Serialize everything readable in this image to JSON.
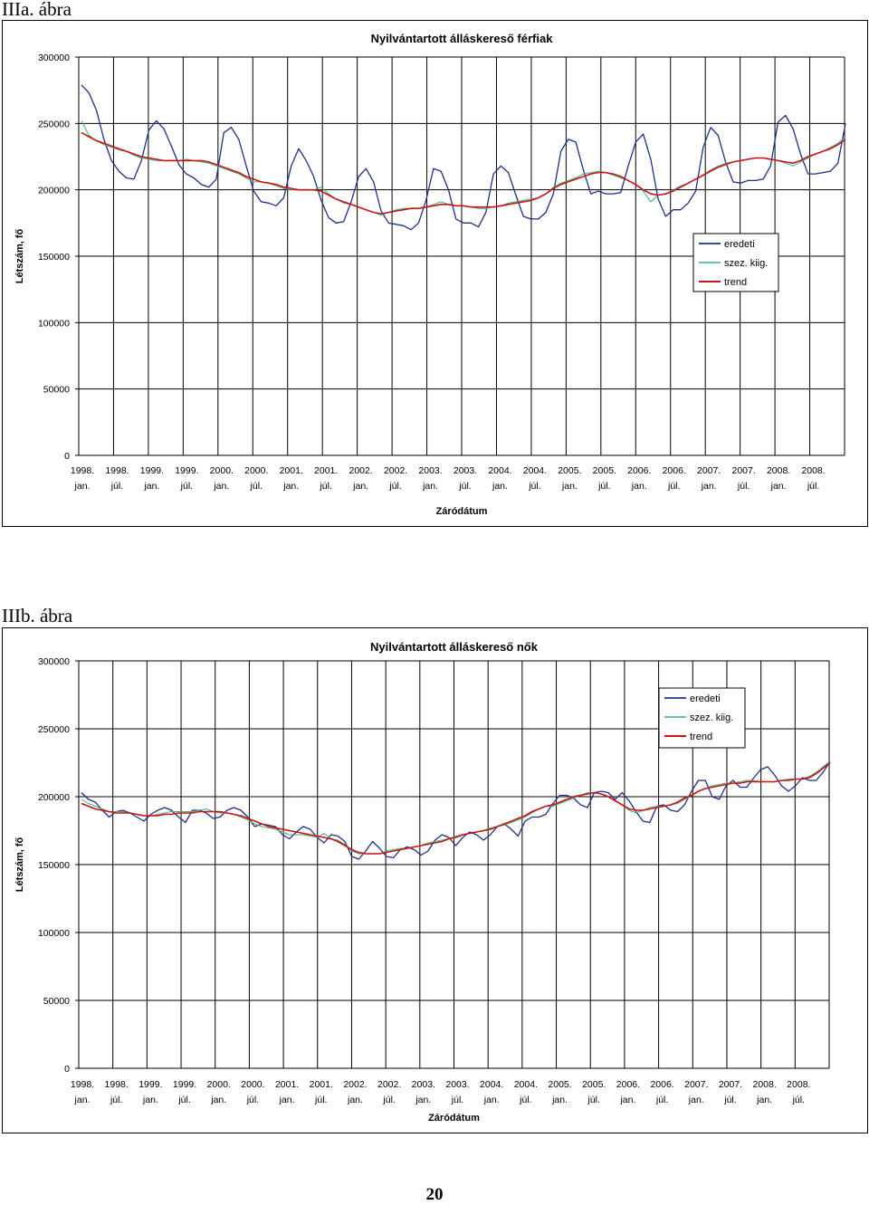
{
  "captions": {
    "a": "IIIa. ábra",
    "b": "IIIb. ábra"
  },
  "page_number": "20",
  "colors": {
    "eredeti": "#1f2f8c",
    "szez": "#3fae7a",
    "trend": "#cc1111",
    "grid": "#000000"
  },
  "chart_data": [
    {
      "type": "line",
      "title": "Nyilvántartott álláskereső férfiak",
      "xlabel": "Záródátum",
      "ylabel": "Létszám, fő",
      "ylim": [
        0,
        300000
      ],
      "yticks": [
        "300000",
        "250000",
        "200000",
        "150000",
        "100000",
        "50000",
        "0"
      ],
      "xticks": [
        [
          "1998.",
          "jan."
        ],
        [
          "1998.",
          "júl."
        ],
        [
          "1999.",
          "jan."
        ],
        [
          "1999.",
          "júl."
        ],
        [
          "2000.",
          "jan."
        ],
        [
          "2000.",
          "júl."
        ],
        [
          "2001.",
          "jan."
        ],
        [
          "2001.",
          "júl."
        ],
        [
          "2002.",
          "jan."
        ],
        [
          "2002.",
          "júl."
        ],
        [
          "2003.",
          "jan."
        ],
        [
          "2003.",
          "júl."
        ],
        [
          "2004.",
          "jan."
        ],
        [
          "2004.",
          "júl."
        ],
        [
          "2005.",
          "jan."
        ],
        [
          "2005.",
          "júl."
        ],
        [
          "2006.",
          "jan."
        ],
        [
          "2006.",
          "júl."
        ],
        [
          "2007.",
          "jan."
        ],
        [
          "2007.",
          "júl."
        ],
        [
          "2008.",
          "jan."
        ],
        [
          "2008.",
          "júl."
        ]
      ],
      "grid": true,
      "legend": "right",
      "series": [
        {
          "name": "eredeti",
          "values": [
            279000,
            273000,
            260000,
            238000,
            222000,
            214000,
            209000,
            208000,
            222000,
            245000,
            252000,
            246000,
            233000,
            219000,
            212000,
            209000,
            204000,
            202000,
            208000,
            243000,
            247000,
            238000,
            218000,
            199000,
            191000,
            190000,
            188000,
            194000,
            218000,
            231000,
            222000,
            210000,
            192000,
            179000,
            175000,
            176000,
            191000,
            210000,
            216000,
            206000,
            184000,
            175000,
            174000,
            173000,
            170000,
            175000,
            192000,
            216000,
            214000,
            200000,
            178000,
            175000,
            175000,
            172000,
            183000,
            212000,
            218000,
            213000,
            196000,
            180000,
            178000,
            178000,
            183000,
            197000,
            229000,
            238000,
            236000,
            215000,
            197000,
            199000,
            197000,
            197000,
            198000,
            218000,
            236000,
            242000,
            223000,
            193000,
            180000,
            185000,
            185000,
            190000,
            199000,
            232000,
            247000,
            241000,
            221000,
            206000,
            205000,
            207000,
            207000,
            208000,
            218000,
            251000,
            256000,
            246000,
            227000,
            212000,
            212000,
            213000,
            214000,
            220000,
            250000
          ]
        },
        {
          "name": "szez. kiig.",
          "values": [
            252000,
            241000,
            237000,
            234000,
            232000,
            230000,
            229000,
            226000,
            224000,
            223000,
            222000,
            222000,
            222000,
            222000,
            223000,
            222000,
            221000,
            220000,
            218000,
            216000,
            214000,
            212000,
            209000,
            206000,
            206000,
            205000,
            203000,
            201000,
            200000,
            200000,
            200000,
            200000,
            202000,
            197000,
            193000,
            190000,
            189000,
            187000,
            185000,
            183000,
            181000,
            183000,
            185000,
            186000,
            186000,
            186000,
            187000,
            189000,
            191000,
            189000,
            188000,
            188000,
            187000,
            186000,
            186000,
            187000,
            188000,
            190000,
            191000,
            192000,
            193000,
            194000,
            197000,
            202000,
            205000,
            207000,
            209000,
            212000,
            213000,
            214000,
            213000,
            211000,
            209000,
            207000,
            204000,
            199000,
            191000,
            196000,
            197000,
            200000,
            203000,
            205000,
            208000,
            211000,
            215000,
            218000,
            220000,
            221000,
            222000,
            223000,
            224000,
            224000,
            223000,
            222000,
            220000,
            218000,
            221000,
            224000,
            227000,
            229000,
            232000,
            235000,
            240000
          ]
        },
        {
          "name": "trend",
          "values": [
            243000,
            240000,
            237000,
            235000,
            233000,
            231000,
            229000,
            227000,
            225000,
            224000,
            223000,
            222000,
            222000,
            222000,
            222000,
            222000,
            222000,
            221000,
            219000,
            217000,
            215000,
            213000,
            210000,
            208000,
            206000,
            205000,
            204000,
            202000,
            201000,
            200000,
            200000,
            200000,
            199000,
            196000,
            193000,
            191000,
            189000,
            187000,
            185000,
            183000,
            182000,
            183000,
            184000,
            185000,
            186000,
            186000,
            187000,
            188000,
            189000,
            189000,
            188000,
            188000,
            187000,
            187000,
            187000,
            187000,
            188000,
            189000,
            190000,
            191000,
            192000,
            194000,
            197000,
            201000,
            204000,
            206000,
            208000,
            210000,
            212000,
            213000,
            213000,
            212000,
            210000,
            207000,
            204000,
            200000,
            197000,
            196000,
            197000,
            199000,
            202000,
            205000,
            208000,
            211000,
            214000,
            217000,
            219000,
            221000,
            222000,
            223000,
            224000,
            224000,
            223000,
            222000,
            221000,
            220000,
            222000,
            225000,
            227000,
            229000,
            231000,
            234000,
            238000
          ]
        }
      ]
    },
    {
      "type": "line",
      "title": "Nyilvántartott álláskereső nők",
      "xlabel": "Záródátum",
      "ylabel": "Létszám, fő",
      "ylim": [
        0,
        300000
      ],
      "yticks": [
        "300000",
        "250000",
        "200000",
        "150000",
        "100000",
        "50000",
        "0"
      ],
      "xticks": [
        [
          "1998.",
          "jan."
        ],
        [
          "1998.",
          "júl."
        ],
        [
          "1999.",
          "jan."
        ],
        [
          "1999.",
          "júl."
        ],
        [
          "2000.",
          "jan."
        ],
        [
          "2000.",
          "júl."
        ],
        [
          "2001.",
          "jan."
        ],
        [
          "2001.",
          "júl."
        ],
        [
          "2002.",
          "jan."
        ],
        [
          "2002.",
          "júl."
        ],
        [
          "2003.",
          "jan."
        ],
        [
          "2003.",
          "júl."
        ],
        [
          "2004.",
          "jan."
        ],
        [
          "2004.",
          "júl."
        ],
        [
          "2005.",
          "jan."
        ],
        [
          "2005.",
          "júl."
        ],
        [
          "2006.",
          "jan."
        ],
        [
          "2006.",
          "júl."
        ],
        [
          "2007.",
          "jan."
        ],
        [
          "2007.",
          "júl."
        ],
        [
          "2008.",
          "jan."
        ],
        [
          "2008.",
          "júl."
        ]
      ],
      "grid": true,
      "legend": "top-right",
      "series": [
        {
          "name": "eredeti",
          "values": [
            203000,
            198000,
            196000,
            190000,
            185000,
            189000,
            190000,
            188000,
            185000,
            182000,
            187000,
            190000,
            192000,
            190000,
            185000,
            181000,
            190000,
            190000,
            188000,
            184000,
            185000,
            190000,
            192000,
            190000,
            185000,
            178000,
            180000,
            179000,
            178000,
            172000,
            169000,
            174000,
            178000,
            176000,
            170000,
            166000,
            172000,
            171000,
            167000,
            156000,
            154000,
            160000,
            167000,
            162000,
            156000,
            155000,
            161000,
            163000,
            161000,
            157000,
            160000,
            168000,
            172000,
            170000,
            164000,
            170000,
            174000,
            172000,
            168000,
            172000,
            178000,
            180000,
            176000,
            171000,
            182000,
            185000,
            185000,
            187000,
            195000,
            201000,
            201000,
            199000,
            194000,
            192000,
            203000,
            204000,
            203000,
            198000,
            203000,
            197000,
            189000,
            182000,
            181000,
            193000,
            194000,
            190000,
            189000,
            194000,
            204000,
            212000,
            212000,
            200000,
            198000,
            208000,
            212000,
            207000,
            207000,
            214000,
            220000,
            222000,
            216000,
            208000,
            204000,
            208000,
            214000,
            212000,
            212000,
            218000,
            226000
          ]
        },
        {
          "name": "szez. kiig.",
          "values": [
            198000,
            195000,
            193000,
            191000,
            189000,
            189000,
            189000,
            188000,
            187000,
            186000,
            186000,
            187000,
            188000,
            189000,
            189000,
            189000,
            189000,
            190000,
            191000,
            189000,
            188000,
            188000,
            187000,
            185000,
            183000,
            180000,
            178000,
            177000,
            176000,
            174000,
            172000,
            172000,
            172000,
            171000,
            170000,
            173000,
            169000,
            168000,
            165000,
            160000,
            158000,
            158000,
            158000,
            158000,
            160000,
            161000,
            162000,
            162000,
            163000,
            164000,
            166000,
            167000,
            168000,
            169000,
            171000,
            172000,
            173000,
            174000,
            175000,
            177000,
            178000,
            179000,
            181000,
            183000,
            185000,
            188000,
            191000,
            193000,
            193000,
            195000,
            197000,
            199000,
            201000,
            203000,
            203000,
            202000,
            200000,
            197000,
            194000,
            190000,
            188000,
            190000,
            192000,
            193000,
            193000,
            194000,
            195000,
            198000,
            201000,
            204000,
            206000,
            208000,
            209000,
            210000,
            210000,
            211000,
            212000,
            212000,
            211000,
            211000,
            211000,
            212000,
            213000,
            213000,
            213000,
            215000,
            218000,
            222000,
            226000
          ]
        },
        {
          "name": "trend",
          "values": [
            195000,
            193000,
            191000,
            190000,
            189000,
            188000,
            188000,
            188000,
            187000,
            186000,
            186000,
            186000,
            187000,
            187000,
            188000,
            188000,
            188000,
            189000,
            189000,
            189000,
            189000,
            188000,
            187000,
            186000,
            184000,
            182000,
            180000,
            178000,
            177000,
            176000,
            175000,
            174000,
            173000,
            172000,
            171000,
            170000,
            169000,
            167000,
            164000,
            161000,
            159000,
            158000,
            158000,
            158000,
            159000,
            160000,
            161000,
            162000,
            163000,
            164000,
            165000,
            166000,
            167000,
            169000,
            170000,
            172000,
            173000,
            174000,
            175000,
            176000,
            178000,
            180000,
            182000,
            184000,
            186000,
            189000,
            191000,
            193000,
            194000,
            196000,
            198000,
            200000,
            201000,
            202000,
            203000,
            202000,
            200000,
            197000,
            194000,
            191000,
            190000,
            190000,
            191000,
            192000,
            193000,
            194000,
            196000,
            199000,
            201000,
            204000,
            206000,
            207000,
            208000,
            209000,
            210000,
            210000,
            211000,
            211000,
            211000,
            211000,
            211000,
            212000,
            212000,
            213000,
            213000,
            214000,
            217000,
            221000,
            225000
          ]
        }
      ]
    }
  ]
}
